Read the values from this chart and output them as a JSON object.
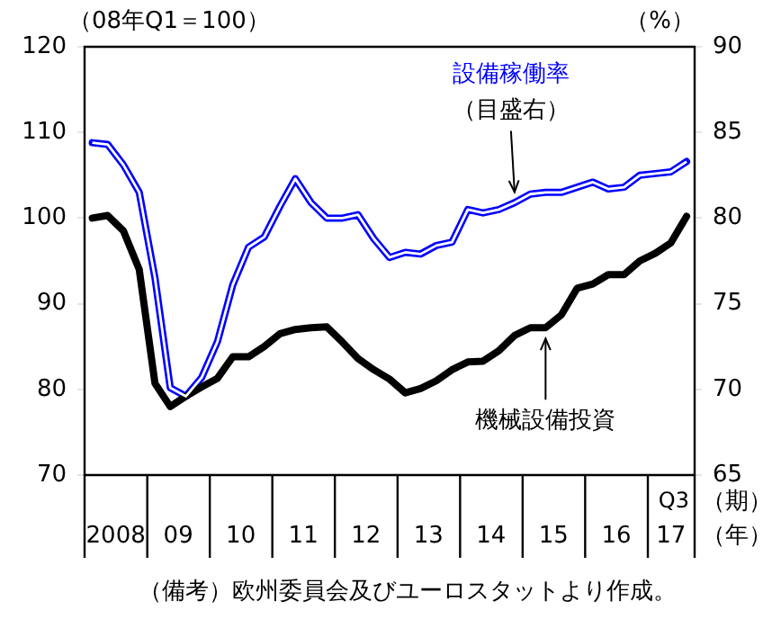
{
  "chart_data": {
    "type": "line",
    "x": [
      "2008-02-15",
      "2008-05-15",
      "2008-08-15",
      "2008-11-15",
      "2009-02-15",
      "2009-05-15",
      "2009-08-15",
      "2009-11-15",
      "2010-02-15",
      "2010-05-15",
      "2010-08-15",
      "2010-11-15",
      "2011-02-15",
      "2011-05-15",
      "2011-08-15",
      "2011-11-15",
      "2012-02-15",
      "2012-05-15",
      "2012-08-15",
      "2012-11-15",
      "2013-02-15",
      "2013-05-15",
      "2013-08-15",
      "2013-11-15",
      "2014-02-15",
      "2014-05-15",
      "2014-08-15",
      "2014-11-15",
      "2015-02-15",
      "2015-05-15",
      "2015-08-15",
      "2015-11-15",
      "2016-02-15",
      "2016-05-15",
      "2016-08-15",
      "2016-11-15",
      "2017-02-15",
      "2017-05-15",
      "2017-08-15"
    ],
    "series": [
      {
        "name": "機械設備投資",
        "color": "#000000",
        "values": [
          100,
          100.3,
          98.5,
          94,
          80.7,
          78,
          79.2,
          80.3,
          81.3,
          83.8,
          83.8,
          85,
          86.5,
          87,
          87.2,
          87.3,
          85.5,
          83.6,
          82.3,
          81.2,
          79.6,
          80.1,
          81,
          82.3,
          83.2,
          83.3,
          84.5,
          86.3,
          87.2,
          87.2,
          88.7,
          91.8,
          92.3,
          93.4,
          93.4,
          95,
          95.9,
          97.1,
          100.2
        ]
      },
      {
        "name": "設備稼働率",
        "color": "#0000ff",
        "axis": "y2",
        "values": [
          84.4,
          84.3,
          83.1,
          81.5,
          76.5,
          70.1,
          69.6,
          70.7,
          72.8,
          76.1,
          78.3,
          78.9,
          80.7,
          82.3,
          80.9,
          80,
          80,
          80.2,
          78.8,
          77.7,
          78,
          77.9,
          78.4,
          78.6,
          80.5,
          80.3,
          80.5,
          80.9,
          81.4,
          81.5,
          81.5,
          81.8,
          82.1,
          81.7,
          81.8,
          82.5,
          82.6,
          82.7,
          83.3
        ]
      }
    ],
    "ylabel": "（08年Q1＝100）",
    "y2label": "（%）",
    "xlabel": "（年）",
    "xlim": [
      "2008-01-01",
      "2017-10-01"
    ],
    "xticks": [
      {
        "value": "2008-07-01",
        "label": "2008"
      },
      {
        "value": "2009-07-01",
        "label": "09"
      },
      {
        "value": "2010-07-01",
        "label": "10"
      },
      {
        "value": "2011-07-01",
        "label": "11"
      },
      {
        "value": "2012-07-01",
        "label": "12"
      },
      {
        "value": "2013-07-01",
        "label": "13"
      },
      {
        "value": "2014-07-01",
        "label": "14"
      },
      {
        "value": "2015-07-01",
        "label": "15"
      },
      {
        "value": "2016-07-01",
        "label": "16"
      },
      {
        "value": "2017-05-16",
        "label": "17"
      }
    ],
    "ylim": [
      70,
      120
    ],
    "yticks": [
      70,
      80,
      90,
      100,
      110,
      120
    ],
    "y2lim": [
      65,
      90
    ],
    "y2ticks": [
      65,
      70,
      75,
      80,
      85,
      90
    ],
    "annotations": [
      {
        "text": "（目盛右）",
        "x": "2014-11-15",
        "y": 102.4
      },
      "Q3",
      "（期）",
      "（備考）欧州委員会及びユーロスタットより作成。"
    ],
    "grid": false,
    "legend": false,
    "marker": "none",
    "line_style": "solid"
  }
}
